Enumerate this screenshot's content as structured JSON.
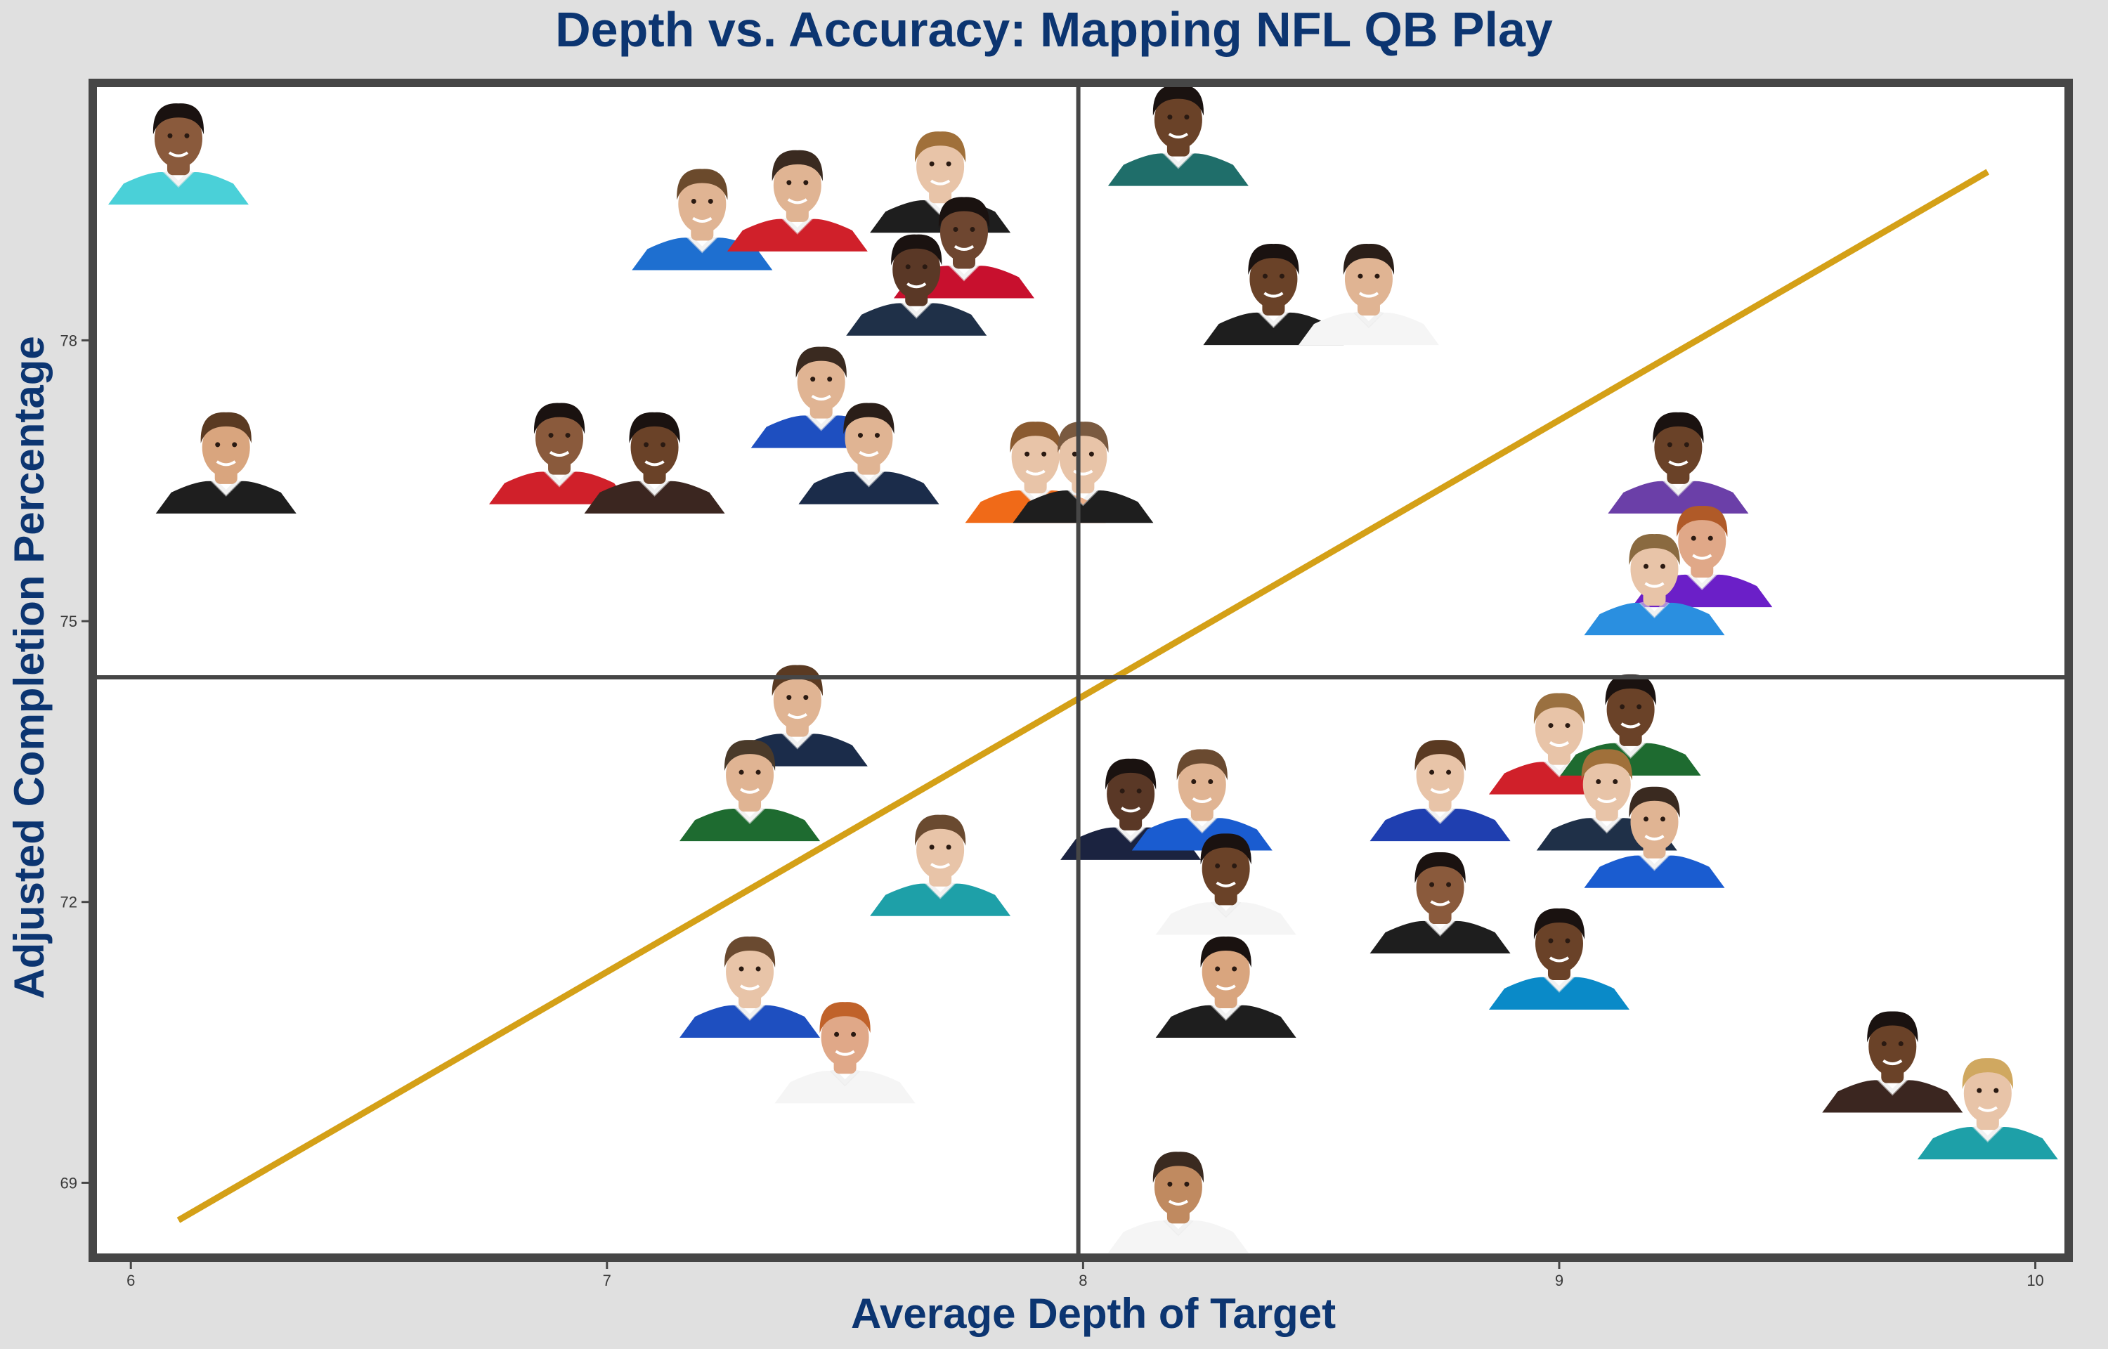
{
  "chart_data": {
    "type": "scatter",
    "title": "Depth vs. Accuracy: Mapping NFL QB Play",
    "xlabel": "Average Depth of Target",
    "ylabel": "Adjusted Completion Percentage",
    "xlim": [
      5.92,
      10.07
    ],
    "ylim": [
      68.2,
      80.75
    ],
    "xticks": [
      6,
      7,
      8,
      9,
      10
    ],
    "yticks": [
      69,
      72,
      75,
      78
    ],
    "grid": false,
    "quadrant_lines": {
      "x": 7.99,
      "y": 74.4
    },
    "trend_line": {
      "x": [
        6.1,
        9.9
      ],
      "y": [
        68.6,
        79.8
      ],
      "color": "#d4a017"
    },
    "marker": "player headshots",
    "points": [
      {
        "x": 6.1,
        "y": 79.9,
        "jersey": "#4ad0d8",
        "skin": "#8a5a3c",
        "hair": "#1a1210"
      },
      {
        "x": 7.2,
        "y": 79.2,
        "jersey": "#1e6fd0",
        "skin": "#e0b493",
        "hair": "#6b4a2c"
      },
      {
        "x": 7.4,
        "y": 79.4,
        "jersey": "#d0202a",
        "skin": "#e0b493",
        "hair": "#3a2a20"
      },
      {
        "x": 7.7,
        "y": 79.6,
        "jersey": "#1e1e1e",
        "skin": "#e8c4a8",
        "hair": "#a0703a"
      },
      {
        "x": 7.75,
        "y": 78.9,
        "jersey": "#c8102e",
        "skin": "#6e4630",
        "hair": "#1a1210"
      },
      {
        "x": 7.65,
        "y": 78.5,
        "jersey": "#1f3048",
        "skin": "#5a3826",
        "hair": "#1a1210"
      },
      {
        "x": 7.45,
        "y": 77.3,
        "jersey": "#1e4fc0",
        "skin": "#e0b493",
        "hair": "#3a2a20"
      },
      {
        "x": 7.55,
        "y": 76.7,
        "jersey": "#1b2c4a",
        "skin": "#e0b493",
        "hair": "#2a1e18"
      },
      {
        "x": 6.2,
        "y": 76.6,
        "jersey": "#1e1e1e",
        "skin": "#d9a57e",
        "hair": "#5a3a22"
      },
      {
        "x": 6.9,
        "y": 76.7,
        "jersey": "#d0202a",
        "skin": "#8a5a3c",
        "hair": "#1a1210"
      },
      {
        "x": 7.1,
        "y": 76.6,
        "jersey": "#3b2620",
        "skin": "#6a4228",
        "hair": "#1a1210"
      },
      {
        "x": 7.9,
        "y": 76.5,
        "jersey": "#f06a18",
        "skin": "#e8c4a8",
        "hair": "#8a5a30"
      },
      {
        "x": 8.0,
        "y": 76.5,
        "jersey": "#1e1e1e",
        "skin": "#e8c4a8",
        "hair": "#7a5a40"
      },
      {
        "x": 8.2,
        "y": 80.1,
        "jersey": "#1f6e6a",
        "skin": "#6a4228",
        "hair": "#1a1210"
      },
      {
        "x": 8.4,
        "y": 78.4,
        "jersey": "#1e1e1e",
        "skin": "#6a4228",
        "hair": "#1a1210"
      },
      {
        "x": 8.6,
        "y": 78.4,
        "jersey": "#f5f5f5",
        "skin": "#e0b493",
        "hair": "#2a1e18"
      },
      {
        "x": 9.25,
        "y": 76.6,
        "jersey": "#6b3fa8",
        "skin": "#6a4228",
        "hair": "#1a1210"
      },
      {
        "x": 9.3,
        "y": 75.6,
        "jersey": "#6b1fc8",
        "skin": "#e0a888",
        "hair": "#b05a28"
      },
      {
        "x": 9.2,
        "y": 75.3,
        "jersey": "#2a8fe0",
        "skin": "#e8c4a8",
        "hair": "#8a6a40"
      },
      {
        "x": 7.4,
        "y": 73.9,
        "jersey": "#1b2c4a",
        "skin": "#e0b493",
        "hair": "#5a3a22"
      },
      {
        "x": 7.3,
        "y": 73.1,
        "jersey": "#1e6b30",
        "skin": "#e0b493",
        "hair": "#4a3a2a"
      },
      {
        "x": 7.7,
        "y": 72.3,
        "jersey": "#1ea0a8",
        "skin": "#e8c4a8",
        "hair": "#6a4a30"
      },
      {
        "x": 7.3,
        "y": 71.0,
        "jersey": "#1e4fc0",
        "skin": "#e8c4a8",
        "hair": "#6a4a30"
      },
      {
        "x": 7.5,
        "y": 70.3,
        "jersey": "#f5f5f5",
        "skin": "#e0a888",
        "hair": "#c0622a"
      },
      {
        "x": 8.1,
        "y": 72.9,
        "jersey": "#1b2340",
        "skin": "#5a3826",
        "hair": "#1a1210"
      },
      {
        "x": 8.25,
        "y": 73.0,
        "jersey": "#1a5cd0",
        "skin": "#e0b493",
        "hair": "#6a4a30"
      },
      {
        "x": 8.75,
        "y": 73.1,
        "jersey": "#1f3fb0",
        "skin": "#e8c4a8",
        "hair": "#5a3a22"
      },
      {
        "x": 9.0,
        "y": 73.6,
        "jersey": "#d0202a",
        "skin": "#e8c4a8",
        "hair": "#9a7040"
      },
      {
        "x": 9.15,
        "y": 73.8,
        "jersey": "#1e6b30",
        "skin": "#6a4228",
        "hair": "#1a1210"
      },
      {
        "x": 9.1,
        "y": 73.0,
        "jersey": "#1f3048",
        "skin": "#e8c4a8",
        "hair": "#a0703a"
      },
      {
        "x": 9.2,
        "y": 72.6,
        "jersey": "#1a5cd0",
        "skin": "#e0b493",
        "hair": "#3a2a20"
      },
      {
        "x": 8.3,
        "y": 72.1,
        "jersey": "#f5f5f5",
        "skin": "#6a4228",
        "hair": "#1a1210"
      },
      {
        "x": 8.75,
        "y": 71.9,
        "jersey": "#1e1e1e",
        "skin": "#8a5a3c",
        "hair": "#1a1210"
      },
      {
        "x": 8.3,
        "y": 71.0,
        "jersey": "#1e1e1e",
        "skin": "#d9a57e",
        "hair": "#1a1210"
      },
      {
        "x": 9.0,
        "y": 71.3,
        "jersey": "#0a8ac8",
        "skin": "#6a4228",
        "hair": "#1a1210"
      },
      {
        "x": 9.7,
        "y": 70.2,
        "jersey": "#3b2620",
        "skin": "#6a4228",
        "hair": "#1a1210"
      },
      {
        "x": 9.9,
        "y": 69.7,
        "jersey": "#1ea0a8",
        "skin": "#e8c4a8",
        "hair": "#d0a860"
      },
      {
        "x": 8.2,
        "y": 68.7,
        "jersey": "#f5f5f5",
        "skin": "#c08a60",
        "hair": "#3a2a20"
      }
    ]
  }
}
